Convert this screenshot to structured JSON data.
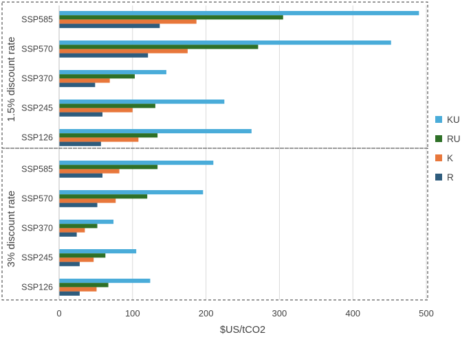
{
  "chart_data": {
    "type": "bar",
    "orientation": "horizontal",
    "xlabel": "$US/tCO2",
    "xlim": [
      0,
      500
    ],
    "xticks": [
      0,
      100,
      200,
      300,
      400,
      500
    ],
    "grid": "vertical",
    "legend_position": "right",
    "categories": [
      "SSP585",
      "SSP570",
      "SSP370",
      "SSP245",
      "SSP126"
    ],
    "series_meta": [
      {
        "name": "KU",
        "color": "#4aacd9"
      },
      {
        "name": "RU",
        "color": "#2e7027"
      },
      {
        "name": "K",
        "color": "#e8773b"
      },
      {
        "name": "R",
        "color": "#2e5c7d"
      }
    ],
    "panels": [
      {
        "label": "1.5% discount rate",
        "series": [
          {
            "name": "KU",
            "values": [
              490,
              452,
              146,
              225,
              262
            ]
          },
          {
            "name": "RU",
            "values": [
              305,
              271,
              103,
              131,
              134
            ]
          },
          {
            "name": "K",
            "values": [
              187,
              175,
              69,
              100,
              108
            ]
          },
          {
            "name": "R",
            "values": [
              137,
              121,
              49,
              59,
              57
            ]
          }
        ]
      },
      {
        "label": "3% discount rate",
        "series": [
          {
            "name": "KU",
            "values": [
              210,
              196,
              74,
              105,
              124
            ]
          },
          {
            "name": "RU",
            "values": [
              134,
              120,
              52,
              63,
              67
            ]
          },
          {
            "name": "K",
            "values": [
              82,
              77,
              35,
              47,
              51
            ]
          },
          {
            "name": "R",
            "values": [
              59,
              52,
              24,
              28,
              28
            ]
          }
        ]
      }
    ]
  }
}
